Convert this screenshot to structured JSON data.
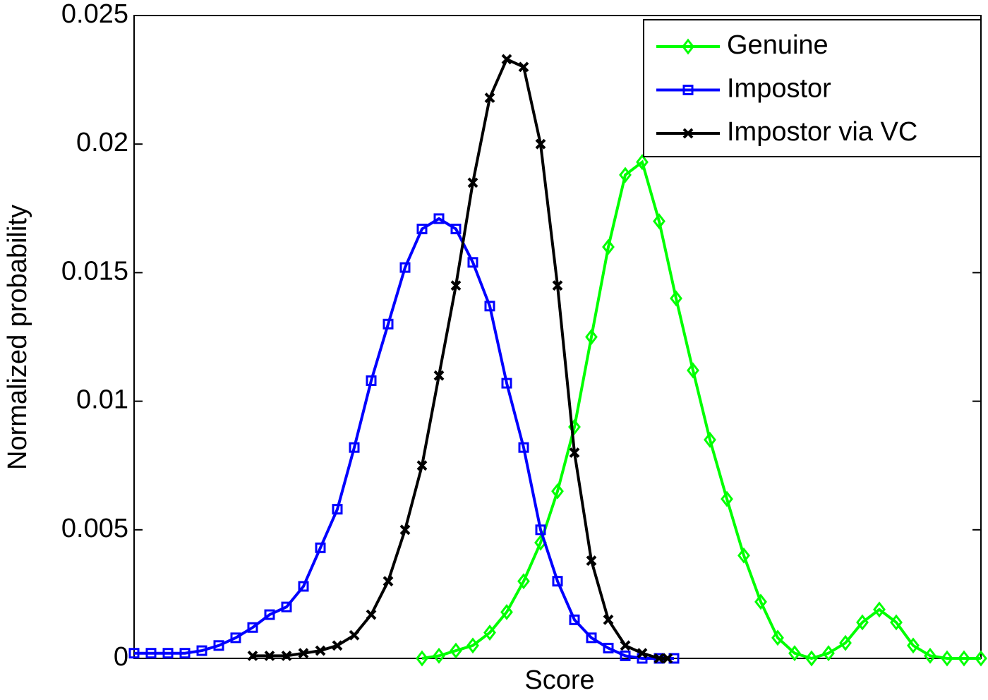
{
  "chart_data": {
    "type": "line",
    "x_label": "Score",
    "y_label": "Normalized probability",
    "xlim": [
      0,
      100
    ],
    "ylim": [
      0,
      0.025
    ],
    "yticks": [
      0,
      0.005,
      0.01,
      0.015,
      0.02,
      0.025
    ],
    "legend": "northeast",
    "series": [
      {
        "name": "Genuine",
        "color": "#00ff00",
        "marker": "diamond",
        "x": [
          34,
          36,
          38,
          40,
          42,
          44,
          46,
          48,
          50,
          52,
          54,
          56,
          58,
          60,
          62,
          64,
          66,
          68,
          70,
          72,
          74,
          76,
          78,
          80,
          82,
          84,
          86,
          88,
          90,
          92,
          94,
          96,
          98,
          100
        ],
        "values": [
          0,
          0.0001,
          0.0003,
          0.0005,
          0.001,
          0.0018,
          0.003,
          0.0045,
          0.0065,
          0.009,
          0.0125,
          0.016,
          0.0188,
          0.0193,
          0.017,
          0.014,
          0.0112,
          0.0085,
          0.0062,
          0.004,
          0.0022,
          0.0008,
          0.0002,
          0,
          0.0002,
          0.0006,
          0.0014,
          0.0019,
          0.0014,
          0.0005,
          0.0001,
          0,
          0,
          0
        ]
      },
      {
        "name": "Impostor",
        "color": "#0000ff",
        "marker": "square",
        "x": [
          0,
          2,
          4,
          6,
          8,
          10,
          12,
          14,
          16,
          18,
          20,
          22,
          24,
          26,
          28,
          30,
          32,
          34,
          36,
          38,
          40,
          42,
          44,
          46,
          48,
          50,
          52,
          54,
          56,
          58,
          60,
          62,
          63.75
        ],
        "values": [
          0.0002,
          0.0002,
          0.0002,
          0.0002,
          0.0003,
          0.0005,
          0.0008,
          0.0012,
          0.0017,
          0.002,
          0.0028,
          0.0043,
          0.0058,
          0.0082,
          0.0108,
          0.013,
          0.0152,
          0.0167,
          0.0171,
          0.0167,
          0.0154,
          0.0137,
          0.0107,
          0.0082,
          0.005,
          0.003,
          0.0015,
          0.0008,
          0.0004,
          0.0001,
          0,
          0,
          0
        ]
      },
      {
        "name": "Impostor via VC",
        "color": "#000000",
        "marker": "x",
        "x": [
          14,
          16,
          18,
          20,
          22,
          24,
          26,
          28,
          30,
          32,
          34,
          36,
          38,
          40,
          42,
          44,
          46,
          48,
          50,
          52,
          54,
          56,
          58,
          60,
          62,
          63
        ],
        "values": [
          0.0001,
          0.0001,
          0.0001,
          0.0002,
          0.0003,
          0.0005,
          0.0009,
          0.0017,
          0.003,
          0.005,
          0.0075,
          0.011,
          0.0145,
          0.0185,
          0.0218,
          0.0233,
          0.023,
          0.02,
          0.0145,
          0.008,
          0.0038,
          0.0015,
          0.0005,
          0.0002,
          0,
          0
        ]
      }
    ]
  }
}
